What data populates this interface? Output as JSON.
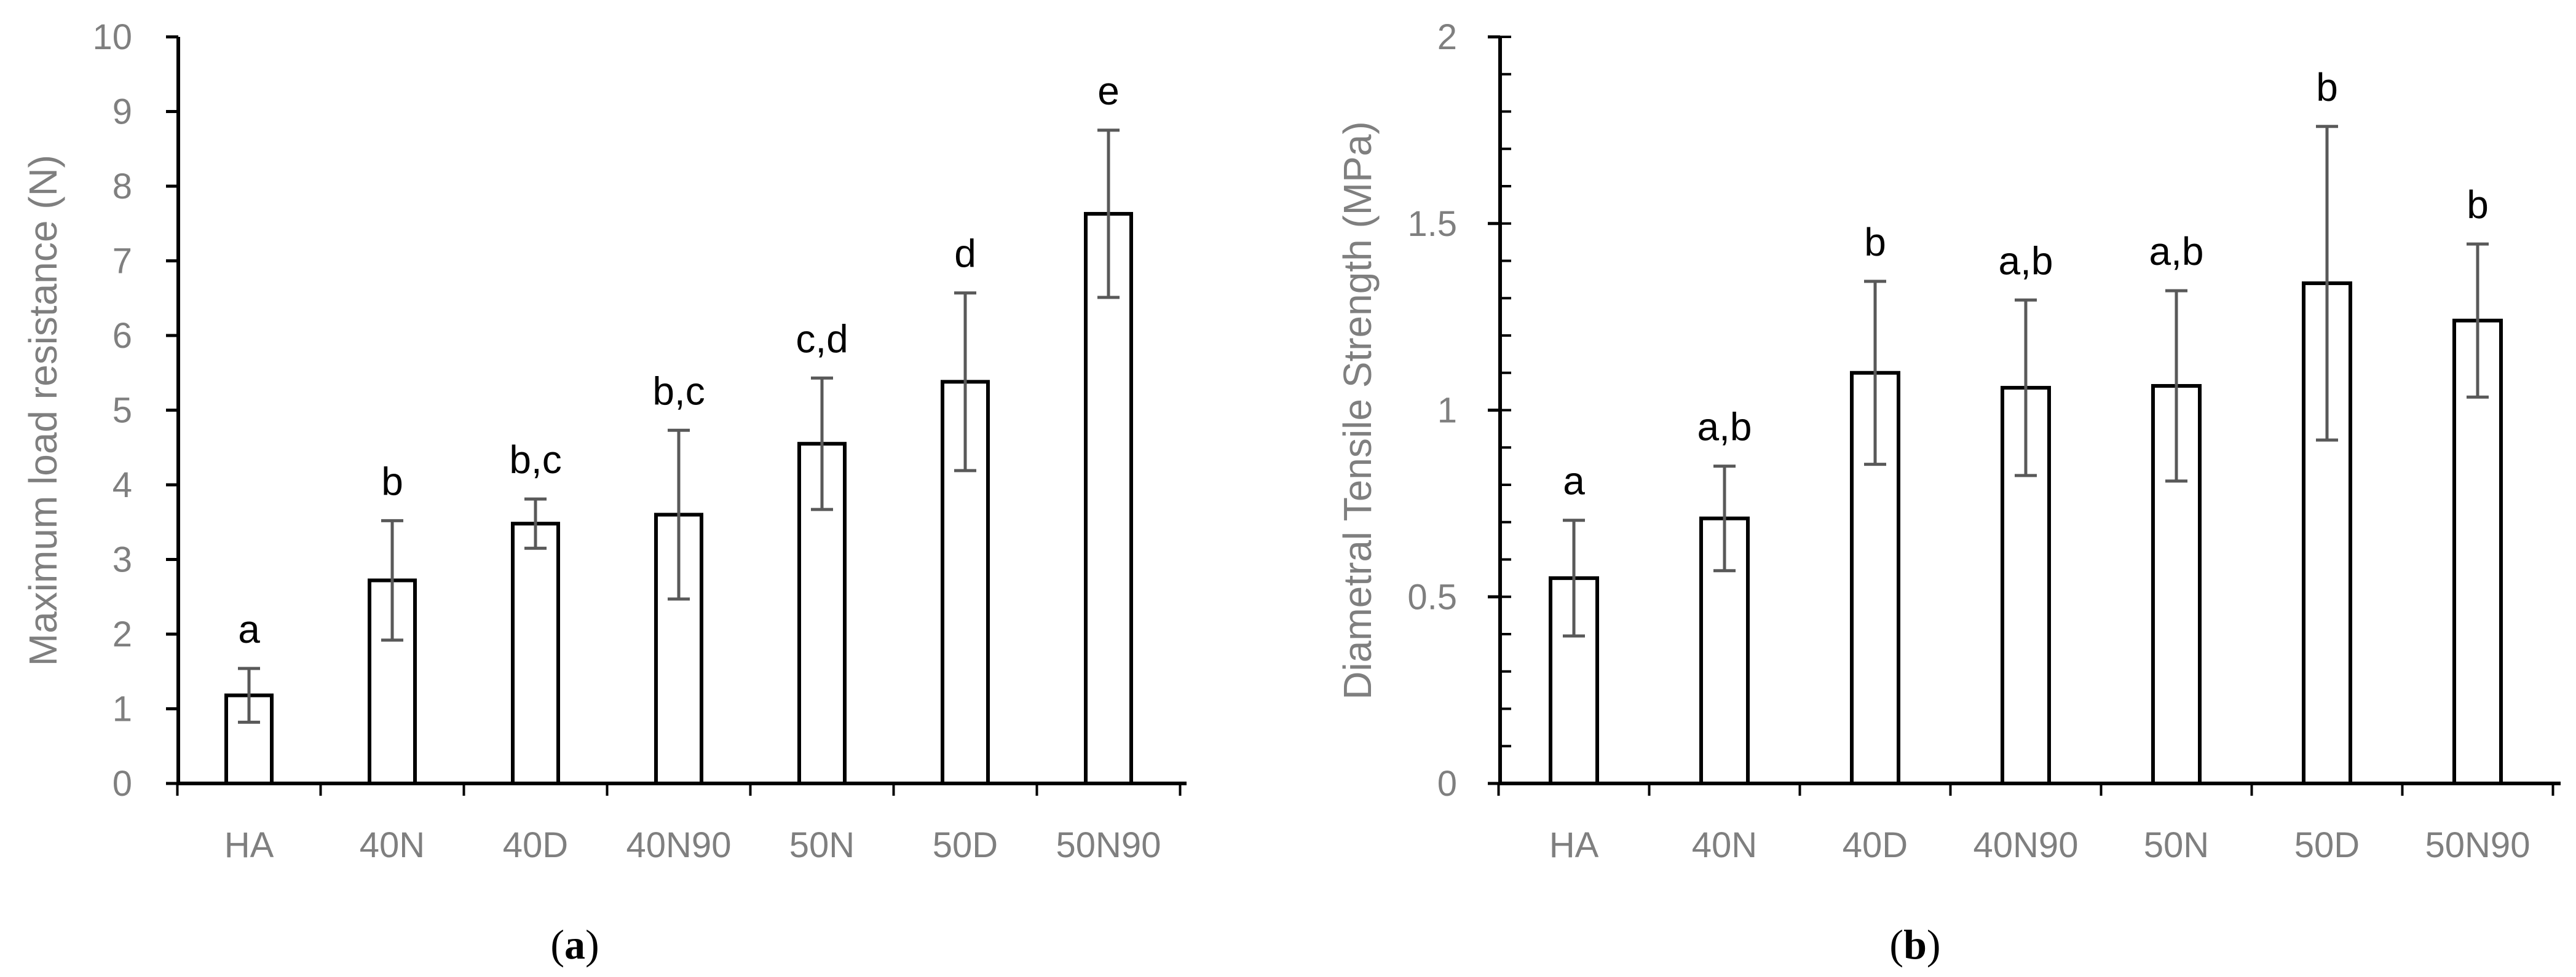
{
  "colors": {
    "bar_fill": "#ffffff",
    "bar_stroke": "#000000",
    "axis": "#000000",
    "error_bar": "#595959",
    "tick_text": "#7f7f7f"
  },
  "chart_data": [
    {
      "id": "a",
      "type": "bar",
      "caption_open": "(",
      "caption_letter": "a",
      "caption_close": ")",
      "categories": [
        "HA",
        "40N",
        "40D",
        "40N90",
        "50N",
        "50D",
        "50N90"
      ],
      "values": [
        1.18,
        2.72,
        3.48,
        3.6,
        4.55,
        5.38,
        7.63
      ],
      "errors": [
        0.36,
        0.8,
        0.33,
        1.13,
        0.88,
        1.19,
        1.12
      ],
      "significance": [
        "a",
        "b",
        "b,c",
        "b,c",
        "c,d",
        "d",
        "e"
      ],
      "ylabel": "Maximum load resistance (N)",
      "xlabel": "",
      "ylim": [
        0,
        10
      ],
      "yticks": [
        0,
        1,
        2,
        3,
        4,
        5,
        6,
        7,
        8,
        9,
        10
      ],
      "ytick_labels": [
        "0",
        "1",
        "2",
        "3",
        "4",
        "5",
        "6",
        "7",
        "8",
        "9",
        "10"
      ],
      "grid": false
    },
    {
      "id": "b",
      "type": "bar",
      "caption_open": "(",
      "caption_letter": "b",
      "caption_close": ")",
      "categories": [
        "HA",
        "40N",
        "40D",
        "40N90",
        "50N",
        "50D",
        "50N90"
      ],
      "values": [
        0.55,
        0.71,
        1.1,
        1.06,
        1.065,
        1.34,
        1.24
      ],
      "errors": [
        0.155,
        0.14,
        0.245,
        0.235,
        0.255,
        0.42,
        0.205
      ],
      "significance": [
        "a",
        "a,b",
        "b",
        "a,b",
        "a,b",
        "b",
        "b"
      ],
      "ylabel": "Diametral Tensile Strength (MPa)",
      "xlabel": "",
      "ylim": [
        0,
        2
      ],
      "yticks": [
        0,
        0.5,
        1,
        1.5,
        2
      ],
      "ytick_labels": [
        "0",
        "0.5",
        "1",
        "1.5",
        "2"
      ],
      "minor_tick_step": 0.1,
      "grid": false
    }
  ]
}
